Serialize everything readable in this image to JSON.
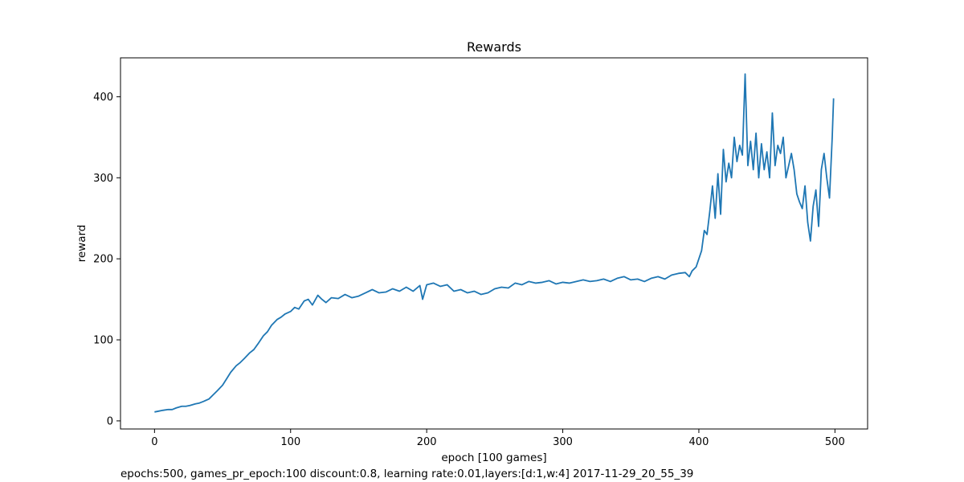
{
  "chart_data": {
    "type": "line",
    "title": "Rewards",
    "xlabel": "epoch [100 games]",
    "ylabel": "reward",
    "xlim": [
      -25,
      524
    ],
    "ylim": [
      -10,
      448
    ],
    "xticks": [
      0,
      100,
      200,
      300,
      400,
      500
    ],
    "yticks": [
      0,
      100,
      200,
      300,
      400
    ],
    "grid": false,
    "legend": "none",
    "line_color": "#1f77b4",
    "series": [
      {
        "x": [
          0,
          3,
          6,
          10,
          13,
          16,
          20,
          23,
          26,
          30,
          33,
          36,
          40,
          43,
          46,
          50,
          53,
          56,
          60,
          63,
          66,
          70,
          73,
          76,
          80,
          83,
          86,
          90,
          93,
          96,
          100,
          103,
          106,
          110,
          113,
          116,
          120,
          123,
          126,
          130,
          135,
          140,
          145,
          150,
          155,
          160,
          165,
          170,
          175,
          180,
          185,
          190,
          195,
          197,
          200,
          205,
          210,
          215,
          220,
          225,
          230,
          235,
          240,
          245,
          250,
          255,
          260,
          265,
          270,
          275,
          280,
          285,
          290,
          295,
          300,
          305,
          310,
          315,
          320,
          325,
          330,
          335,
          340,
          345,
          350,
          355,
          360,
          365,
          370,
          375,
          380,
          385,
          390,
          393,
          395,
          398,
          400,
          402,
          404,
          406,
          408,
          410,
          412,
          414,
          416,
          418,
          420,
          422,
          424,
          426,
          428,
          430,
          432,
          434,
          436,
          438,
          440,
          442,
          444,
          446,
          448,
          450,
          452,
          454,
          456,
          458,
          460,
          462,
          464,
          466,
          468,
          470,
          472,
          474,
          476,
          478,
          480,
          482,
          484,
          486,
          488,
          490,
          492,
          494,
          496,
          498,
          499
        ],
        "values": [
          11,
          12,
          13,
          14,
          14,
          16,
          18,
          18,
          19,
          21,
          22,
          24,
          27,
          32,
          37,
          44,
          52,
          60,
          68,
          72,
          77,
          84,
          88,
          95,
          105,
          110,
          118,
          125,
          128,
          132,
          135,
          140,
          138,
          148,
          150,
          143,
          155,
          150,
          146,
          152,
          151,
          156,
          152,
          154,
          158,
          162,
          158,
          159,
          163,
          160,
          165,
          160,
          167,
          150,
          168,
          170,
          166,
          168,
          160,
          162,
          158,
          160,
          156,
          158,
          163,
          165,
          164,
          170,
          168,
          172,
          170,
          171,
          173,
          169,
          171,
          170,
          172,
          174,
          172,
          173,
          175,
          172,
          176,
          178,
          174,
          175,
          172,
          176,
          178,
          175,
          180,
          182,
          183,
          178,
          185,
          190,
          200,
          210,
          235,
          230,
          258,
          290,
          250,
          305,
          255,
          335,
          295,
          318,
          300,
          350,
          320,
          340,
          328,
          428,
          315,
          345,
          310,
          355,
          300,
          342,
          310,
          332,
          300,
          380,
          315,
          340,
          330,
          350,
          300,
          315,
          330,
          310,
          280,
          270,
          262,
          290,
          245,
          222,
          265,
          285,
          240,
          310,
          330,
          300,
          275,
          350,
          398
        ]
      }
    ]
  },
  "caption": "epochs:500, games_pr_epoch:100 discount:0.8, learning rate:0.01,layers:[d:1,w:4] 2017-11-29_20_55_39"
}
